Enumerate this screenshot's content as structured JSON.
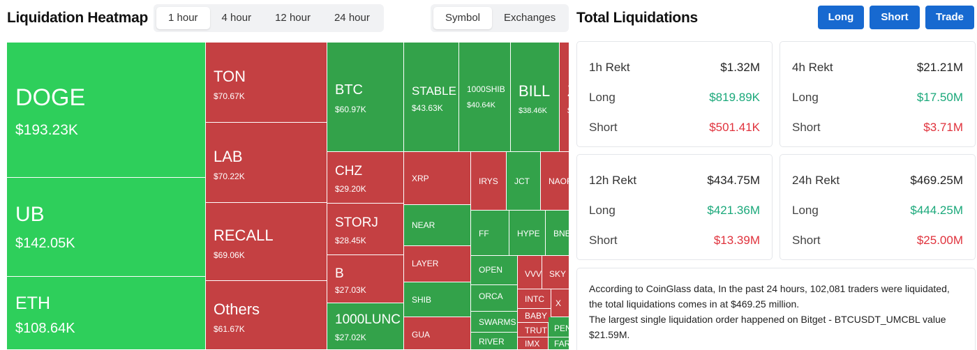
{
  "heatmap": {
    "title": "Liquidation Heatmap",
    "timeframes": [
      "1 hour",
      "4 hour",
      "12 hour",
      "24 hour"
    ],
    "active_timeframe": 0,
    "views": [
      "Symbol",
      "Exchanges"
    ],
    "active_view": 0,
    "cells": [
      {
        "name": "DOGE",
        "value": "$193.23K"
      },
      {
        "name": "UB",
        "value": "$142.05K"
      },
      {
        "name": "ETH",
        "value": "$108.64K"
      },
      {
        "name": "TON",
        "value": "$70.67K"
      },
      {
        "name": "LAB",
        "value": "$70.22K"
      },
      {
        "name": "RECALL",
        "value": "$69.06K"
      },
      {
        "name": "Others",
        "value": "$61.67K"
      },
      {
        "name": "BTC",
        "value": "$60.97K"
      },
      {
        "name": "STABLE",
        "value": "$43.63K"
      },
      {
        "name": "1000SHIB",
        "value": "$40.64K"
      },
      {
        "name": "BILL",
        "value": "$38.46K"
      },
      {
        "name": "Z",
        "value": "$"
      },
      {
        "name": "CHZ",
        "value": "$29.20K"
      },
      {
        "name": "STORJ",
        "value": "$28.45K"
      },
      {
        "name": "B",
        "value": "$27.03K"
      },
      {
        "name": "1000LUNC",
        "value": "$27.02K"
      },
      {
        "name": "XRP",
        "value": ""
      },
      {
        "name": "IRYS",
        "value": ""
      },
      {
        "name": "JCT",
        "value": ""
      },
      {
        "name": "NAOR",
        "value": ""
      },
      {
        "name": "NEAR",
        "value": ""
      },
      {
        "name": "FF",
        "value": ""
      },
      {
        "name": "HYPE",
        "value": ""
      },
      {
        "name": "BNB",
        "value": ""
      },
      {
        "name": "LAYER",
        "value": ""
      },
      {
        "name": "OPEN",
        "value": ""
      },
      {
        "name": "VVV",
        "value": ""
      },
      {
        "name": "SKY",
        "value": ""
      },
      {
        "name": "SHIB",
        "value": ""
      },
      {
        "name": "ORCA",
        "value": ""
      },
      {
        "name": "INTC",
        "value": ""
      },
      {
        "name": "X",
        "value": ""
      },
      {
        "name": "GUA",
        "value": ""
      },
      {
        "name": "SWARMS",
        "value": ""
      },
      {
        "name": "BABY",
        "value": ""
      },
      {
        "name": "TRUT",
        "value": ""
      },
      {
        "name": "PEN",
        "value": ""
      },
      {
        "name": "RIVER",
        "value": ""
      },
      {
        "name": "IMX",
        "value": ""
      },
      {
        "name": "FAR",
        "value": ""
      }
    ]
  },
  "total": {
    "title": "Total Liquidations",
    "buttons": [
      "Long",
      "Short",
      "Trade"
    ],
    "cards": [
      {
        "period": "1h Rekt",
        "total": "$1.32M",
        "long_label": "Long",
        "long": "$819.89K",
        "short_label": "Short",
        "short": "$501.41K"
      },
      {
        "period": "4h Rekt",
        "total": "$21.21M",
        "long_label": "Long",
        "long": "$17.50M",
        "short_label": "Short",
        "short": "$3.71M"
      },
      {
        "period": "12h Rekt",
        "total": "$434.75M",
        "long_label": "Long",
        "long": "$421.36M",
        "short_label": "Short",
        "short": "$13.39M"
      },
      {
        "period": "24h Rekt",
        "total": "$469.25M",
        "long_label": "Long",
        "long": "$444.25M",
        "short_label": "Short",
        "short": "$25.00M"
      }
    ],
    "summary_line1": "According to CoinGlass data, In the past 24 hours, 102,081 traders were liquidated, the total liquidations comes in at $469.25 million.",
    "summary_line2": "The largest single liquidation order happened on Bitget - BTCUSDT_UMCBL value $21.59M."
  },
  "colors": {
    "long_green": "#1aa87a",
    "short_red": "#e0323c",
    "button_blue": "#1769d0",
    "cell_green": "#33a24a",
    "cell_bright_green": "#2ecf5b",
    "cell_red": "#c44042"
  }
}
